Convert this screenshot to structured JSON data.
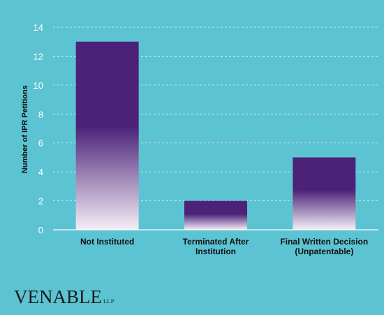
{
  "chart_data": {
    "type": "bar",
    "categories": [
      [
        "Not Instituted"
      ],
      [
        "Terminated After",
        "Institution"
      ],
      [
        "Final Written Decision",
        "(Unpatentable)"
      ]
    ],
    "values": [
      13,
      2,
      5
    ],
    "ylabel": "Number of IPR Petitions",
    "xlabel": "",
    "title": "",
    "ylim": [
      0,
      14
    ],
    "yticks": [
      0,
      2,
      4,
      6,
      8,
      10,
      12,
      14
    ],
    "grid": true,
    "bar_color": "#4b2278",
    "bar_fade_color": "#f4eef6",
    "background": "#5cc3d3"
  },
  "logo": {
    "text": "VENABLE",
    "suffix": "LLP"
  }
}
